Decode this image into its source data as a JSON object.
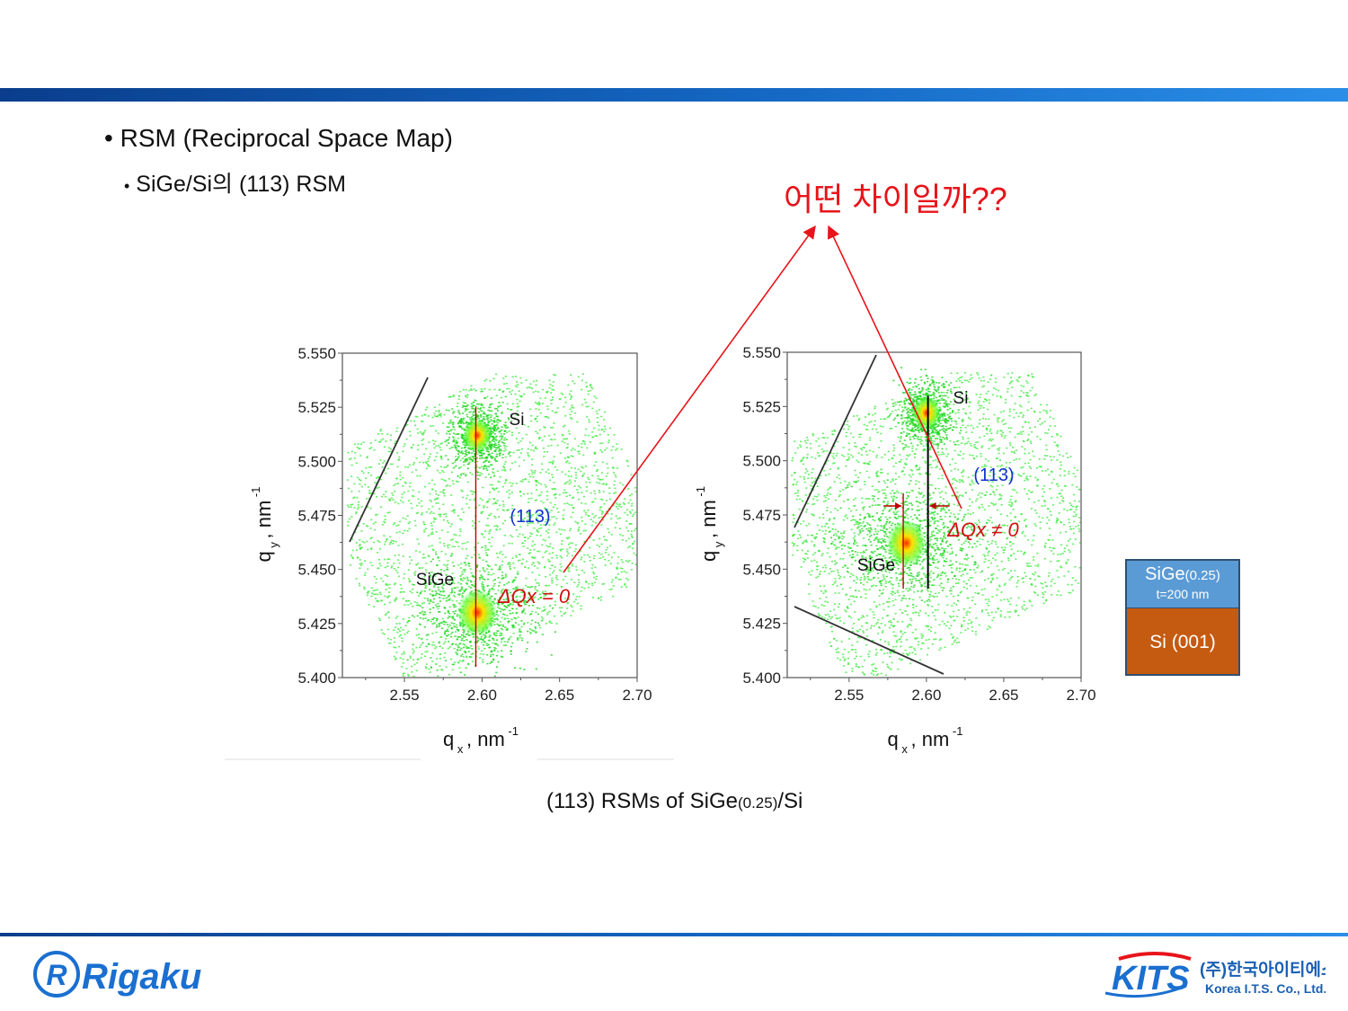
{
  "slide": {
    "bullet1": "RSM (Reciprocal Space Map)",
    "bullet2": "SiGe/Si의 (113) RSM",
    "question": "어떤 차이일까??",
    "caption_main": "(113) RSMs of SiGe",
    "caption_sub": "(0.25)",
    "caption_tail": "/Si"
  },
  "chart_data": [
    {
      "type": "heatmap",
      "title": "",
      "xlabel": "q x , nm -1",
      "ylabel": "q y , nm -1",
      "xlim": [
        2.51,
        2.7
      ],
      "ylim": [
        5.4,
        5.55
      ],
      "xticks": [
        "2.55",
        "2.60",
        "2.65",
        "2.70"
      ],
      "yticks": [
        "5.400",
        "5.425",
        "5.450",
        "5.475",
        "5.500",
        "5.525",
        "5.550"
      ],
      "peaks": [
        {
          "name": "Si",
          "x": 2.597,
          "y": 5.512
        },
        {
          "name": "SiGe",
          "x": 2.597,
          "y": 5.43
        }
      ],
      "annotations": [
        "Si",
        "SiGe",
        "(113)",
        "ΔQx = 0"
      ],
      "lines": [
        {
          "x": 2.596,
          "y_from": 5.405,
          "y_to": 5.525,
          "color": "#c00000"
        }
      ]
    },
    {
      "type": "heatmap",
      "title": "",
      "xlabel": "q x , nm -1",
      "ylabel": "q y , nm -1",
      "xlim": [
        2.51,
        2.7
      ],
      "ylim": [
        5.4,
        5.55
      ],
      "xticks": [
        "2.55",
        "2.60",
        "2.65",
        "2.70"
      ],
      "yticks": [
        "5.400",
        "5.425",
        "5.450",
        "5.475",
        "5.500",
        "5.525",
        "5.550"
      ],
      "peaks": [
        {
          "name": "Si",
          "x": 2.6,
          "y": 5.522
        },
        {
          "name": "SiGe",
          "x": 2.587,
          "y": 5.462
        }
      ],
      "annotations": [
        "Si",
        "SiGe",
        "(113)",
        "ΔQx ≠ 0"
      ],
      "lines": [
        {
          "x": 2.601,
          "y_from": 5.441,
          "y_to": 5.53,
          "color": "#000000"
        },
        {
          "x": 2.585,
          "y_from": 5.441,
          "y_to": 5.485,
          "color": "#c00000"
        }
      ]
    }
  ],
  "layer_stack": {
    "top_label": "SiGe",
    "top_sub": "(0.25)",
    "top_thickness": "t=200 nm",
    "bottom_label": "Si (001)",
    "top_color": "#5b9bd5",
    "bottom_color": "#c55a11"
  },
  "logos": {
    "rigaku": "Rigaku",
    "kits": "KITS",
    "kits_korean": "(주)한국아이티에스",
    "kits_english": "Korea I.T.S. Co., Ltd."
  }
}
